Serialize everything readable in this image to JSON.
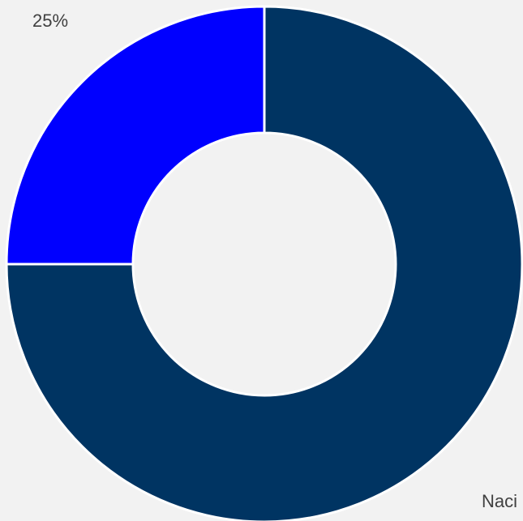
{
  "chart_data": {
    "type": "donut",
    "categories": [
      "Naci",
      null
    ],
    "values": [
      75,
      25
    ],
    "value_labels": [
      null,
      "25%"
    ],
    "colors": [
      "#003462",
      "#0000ff"
    ]
  }
}
